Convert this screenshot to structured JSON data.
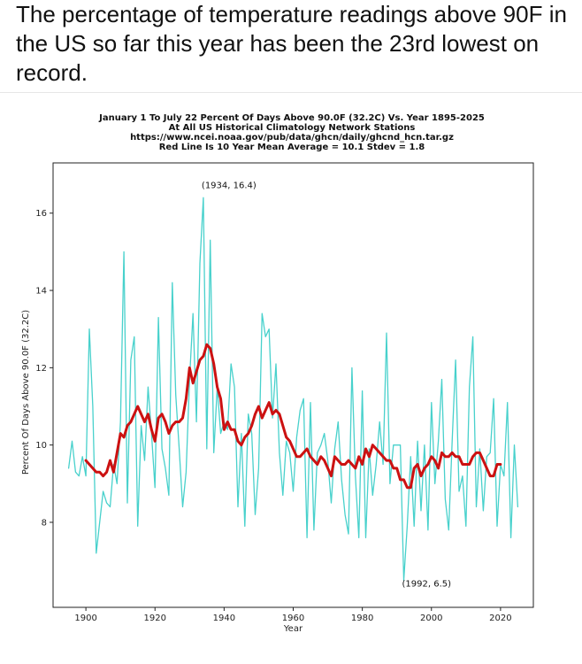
{
  "post": {
    "caption": "The percentage of temperature readings above 90F in the US so far this year has been the 23rd lowest on record."
  },
  "chart_data": {
    "type": "line",
    "title_lines": [
      "January 1 To July 22 Percent Of Days Above 90.0F (32.2C) Vs. Year 1895-2025",
      "At All US Historical Climatology Network Stations",
      "https://www.ncei.noaa.gov/pub/data/ghcn/daily/ghcnd_hcn.tar.gz",
      "Red Line Is 10 Year Mean  Average = 10.1 Stdev = 1.8"
    ],
    "xlabel": "Year",
    "ylabel": "Percent Of Days Above 90.0F (32.2C)",
    "xlim": [
      1890.5,
      2029.5
    ],
    "ylim": [
      5.8,
      17.3
    ],
    "x_ticks": [
      1900,
      1920,
      1940,
      1960,
      1980,
      2000,
      2020
    ],
    "y_ticks": [
      8,
      10,
      12,
      14,
      16
    ],
    "grid": false,
    "annotations": [
      {
        "x": 1934,
        "y": 16.4,
        "text": "(1934, 16.4)"
      },
      {
        "x": 1992,
        "y": 6.5,
        "text": "(1992, 6.5)"
      }
    ],
    "series": [
      {
        "color": "#48d1cc",
        "x": [
          1895,
          1896,
          1897,
          1898,
          1899,
          1900,
          1901,
          1902,
          1903,
          1904,
          1905,
          1906,
          1907,
          1908,
          1909,
          1910,
          1911,
          1912,
          1913,
          1914,
          1915,
          1916,
          1917,
          1918,
          1919,
          1920,
          1921,
          1922,
          1923,
          1924,
          1925,
          1926,
          1927,
          1928,
          1929,
          1930,
          1931,
          1932,
          1933,
          1934,
          1935,
          1936,
          1937,
          1938,
          1939,
          1940,
          1941,
          1942,
          1943,
          1944,
          1945,
          1946,
          1947,
          1948,
          1949,
          1950,
          1951,
          1952,
          1953,
          1954,
          1955,
          1956,
          1957,
          1958,
          1959,
          1960,
          1961,
          1962,
          1963,
          1964,
          1965,
          1966,
          1967,
          1968,
          1969,
          1970,
          1971,
          1972,
          1973,
          1974,
          1975,
          1976,
          1977,
          1978,
          1979,
          1980,
          1981,
          1982,
          1983,
          1984,
          1985,
          1986,
          1987,
          1988,
          1989,
          1990,
          1991,
          1992,
          1993,
          1994,
          1995,
          1996,
          1997,
          1998,
          1999,
          2000,
          2001,
          2002,
          2003,
          2004,
          2005,
          2006,
          2007,
          2008,
          2009,
          2010,
          2011,
          2012,
          2013,
          2014,
          2015,
          2016,
          2017,
          2018,
          2019,
          2020,
          2021,
          2022,
          2023,
          2024,
          2025
        ],
        "values": [
          9.4,
          10.1,
          9.3,
          9.2,
          9.7,
          9.2,
          13.0,
          11.0,
          7.2,
          8.0,
          8.8,
          8.5,
          8.4,
          9.5,
          9.0,
          10.6,
          15.0,
          8.5,
          12.2,
          12.8,
          7.9,
          10.5,
          9.6,
          11.5,
          10.3,
          8.9,
          13.3,
          9.9,
          9.4,
          8.7,
          14.2,
          11.3,
          9.9,
          8.4,
          9.3,
          11.7,
          13.4,
          10.6,
          14.7,
          16.4,
          9.9,
          15.3,
          9.8,
          11.5,
          10.3,
          10.6,
          10.4,
          12.1,
          11.5,
          8.4,
          10.3,
          7.9,
          10.8,
          10.3,
          8.2,
          9.4,
          13.4,
          12.8,
          13.0,
          10.7,
          12.1,
          9.8,
          8.7,
          10.1,
          9.8,
          8.8,
          10.2,
          10.9,
          11.2,
          7.6,
          11.1,
          7.8,
          9.8,
          10.0,
          10.3,
          9.6,
          8.5,
          9.9,
          10.6,
          9.1,
          8.2,
          7.7,
          12.0,
          9.2,
          7.6,
          11.4,
          7.6,
          9.9,
          8.7,
          9.5,
          10.6,
          9.5,
          12.9,
          9.0,
          10.0,
          10.0,
          10.0,
          6.5,
          7.9,
          9.7,
          7.9,
          10.1,
          8.3,
          10.0,
          7.8,
          11.1,
          9.0,
          10.1,
          11.7,
          8.6,
          7.8,
          10.1,
          12.2,
          8.8,
          9.2,
          7.9,
          11.5,
          12.8,
          8.4,
          9.9,
          8.3,
          9.7,
          9.8,
          11.2,
          7.9,
          9.5,
          9.2,
          11.1,
          7.6,
          10.0,
          8.4
        ]
      },
      {
        "color": "#cc1111",
        "x": [
          1900,
          1901,
          1902,
          1903,
          1904,
          1905,
          1906,
          1907,
          1908,
          1909,
          1910,
          1911,
          1912,
          1913,
          1914,
          1915,
          1916,
          1917,
          1918,
          1919,
          1920,
          1921,
          1922,
          1923,
          1924,
          1925,
          1926,
          1927,
          1928,
          1929,
          1930,
          1931,
          1932,
          1933,
          1934,
          1935,
          1936,
          1937,
          1938,
          1939,
          1940,
          1941,
          1942,
          1943,
          1944,
          1945,
          1946,
          1947,
          1948,
          1949,
          1950,
          1951,
          1952,
          1953,
          1954,
          1955,
          1956,
          1957,
          1958,
          1959,
          1960,
          1961,
          1962,
          1963,
          1964,
          1965,
          1966,
          1967,
          1968,
          1969,
          1970,
          1971,
          1972,
          1973,
          1974,
          1975,
          1976,
          1977,
          1978,
          1979,
          1980,
          1981,
          1982,
          1983,
          1984,
          1985,
          1986,
          1987,
          1988,
          1989,
          1990,
          1991,
          1992,
          1993,
          1994,
          1995,
          1996,
          1997,
          1998,
          1999,
          2000,
          2001,
          2002,
          2003,
          2004,
          2005,
          2006,
          2007,
          2008,
          2009,
          2010,
          2011,
          2012,
          2013,
          2014,
          2015,
          2016,
          2017,
          2018,
          2019,
          2020
        ],
        "values": [
          9.6,
          9.5,
          9.4,
          9.3,
          9.3,
          9.2,
          9.3,
          9.6,
          9.3,
          9.8,
          10.3,
          10.2,
          10.5,
          10.6,
          10.8,
          11.0,
          10.8,
          10.6,
          10.8,
          10.4,
          10.1,
          10.7,
          10.8,
          10.6,
          10.3,
          10.5,
          10.6,
          10.6,
          10.7,
          11.2,
          12.0,
          11.6,
          11.9,
          12.2,
          12.3,
          12.6,
          12.5,
          12.1,
          11.5,
          11.2,
          10.4,
          10.6,
          10.4,
          10.4,
          10.1,
          10.0,
          10.2,
          10.3,
          10.5,
          10.8,
          11.0,
          10.7,
          10.9,
          11.1,
          10.8,
          10.9,
          10.8,
          10.5,
          10.2,
          10.1,
          9.9,
          9.7,
          9.7,
          9.8,
          9.9,
          9.7,
          9.6,
          9.5,
          9.7,
          9.6,
          9.4,
          9.2,
          9.7,
          9.6,
          9.5,
          9.5,
          9.6,
          9.5,
          9.4,
          9.7,
          9.5,
          9.9,
          9.7,
          10.0,
          9.9,
          9.8,
          9.7,
          9.6,
          9.6,
          9.4,
          9.4,
          9.1,
          9.1,
          8.9,
          8.9,
          9.4,
          9.5,
          9.2,
          9.4,
          9.5,
          9.7,
          9.6,
          9.4,
          9.8,
          9.7,
          9.7,
          9.8,
          9.7,
          9.7,
          9.5,
          9.5,
          9.5,
          9.7,
          9.8,
          9.8,
          9.6,
          9.4,
          9.2,
          9.2,
          9.5,
          9.5
        ]
      }
    ]
  }
}
